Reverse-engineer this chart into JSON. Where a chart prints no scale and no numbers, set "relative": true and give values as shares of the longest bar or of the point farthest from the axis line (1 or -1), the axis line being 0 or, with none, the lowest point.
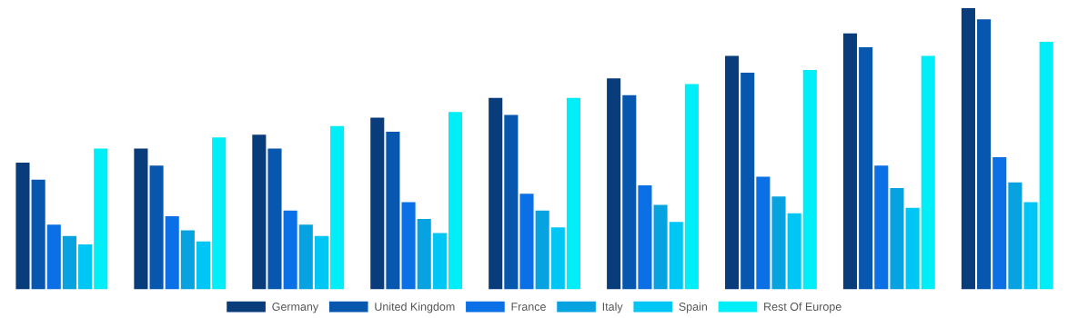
{
  "chart_data": {
    "type": "bar",
    "relative": true,
    "categories": [
      null,
      null,
      null,
      null,
      null,
      null,
      null,
      null,
      null
    ],
    "series": [
      {
        "name": "Germany",
        "color": "#083c7a",
        "values": [
          0.45,
          0.5,
          0.55,
          0.61,
          0.68,
          0.75,
          0.83,
          0.91,
          1
        ]
      },
      {
        "name": "United Kingdom",
        "color": "#0757ae",
        "values": [
          0.39,
          0.44,
          0.5,
          0.56,
          0.62,
          0.69,
          0.77,
          0.86,
          0.96
        ]
      },
      {
        "name": "France",
        "color": "#0b6fe6",
        "values": [
          0.23,
          0.26,
          0.28,
          0.31,
          0.34,
          0.37,
          0.4,
          0.44,
          0.47
        ]
      },
      {
        "name": "Italy",
        "color": "#07a3e0",
        "values": [
          0.19,
          0.21,
          0.23,
          0.25,
          0.28,
          0.3,
          0.33,
          0.36,
          0.38
        ]
      },
      {
        "name": "Spain",
        "color": "#00c6f5",
        "values": [
          0.16,
          0.17,
          0.19,
          0.2,
          0.22,
          0.24,
          0.27,
          0.29,
          0.31
        ]
      },
      {
        "name": "Rest Of Europe",
        "color": "#00eef8",
        "values": [
          0.5,
          0.54,
          0.58,
          0.63,
          0.68,
          0.73,
          0.78,
          0.83,
          0.88
        ]
      }
    ],
    "legend": "bottom",
    "grid": false
  }
}
